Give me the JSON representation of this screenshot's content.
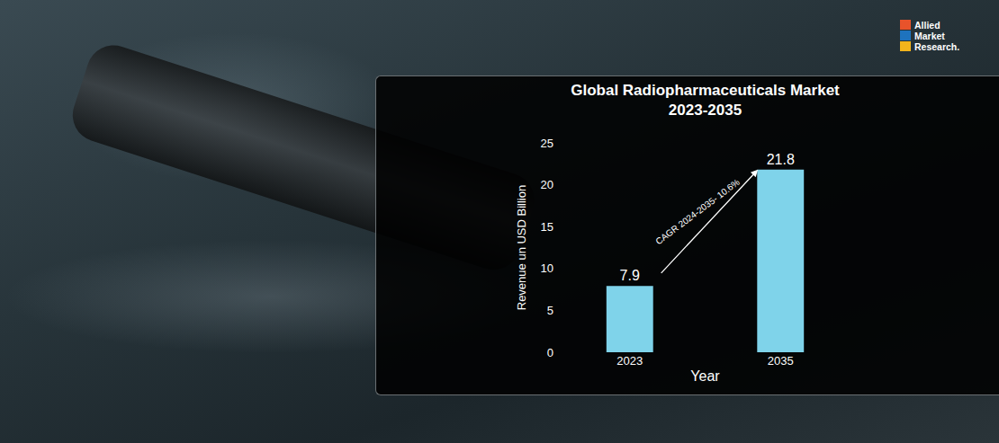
{
  "chart_data": {
    "type": "bar",
    "title": "Global Radiopharmaceuticals Market\n2023-2035",
    "categories": [
      "2023",
      "2035"
    ],
    "values": [
      7.9,
      21.8
    ],
    "color": "#7fd3ea",
    "ylim": [
      0,
      25
    ],
    "yticks": [
      0,
      5,
      10,
      15,
      20,
      25
    ],
    "x_label": "Year",
    "y_label": "Revenue un USD Billion",
    "data_labels": true,
    "grid": false,
    "annotations": [
      "CAGR 2024-2035- 10.6%"
    ]
  },
  "logo": {
    "lines": [
      "Allied",
      "Market",
      "Research."
    ]
  }
}
